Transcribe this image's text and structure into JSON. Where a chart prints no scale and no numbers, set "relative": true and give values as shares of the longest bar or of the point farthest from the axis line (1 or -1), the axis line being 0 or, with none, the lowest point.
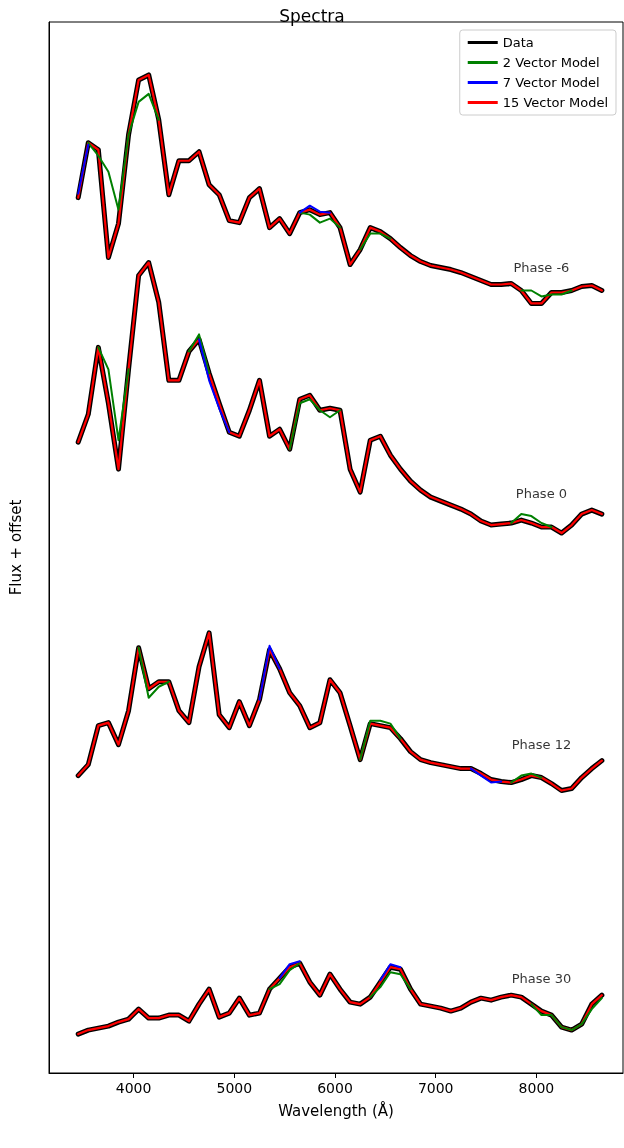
{
  "chart_data": {
    "type": "line",
    "title": "Spectra",
    "xlabel": "Wavelength (Å)",
    "ylabel": "Flux + offset",
    "relative": true,
    "legend": "top right",
    "xlim": [
      3160,
      8860
    ],
    "xticks": [
      4000,
      5000,
      6000,
      7000,
      8000
    ],
    "x": [
      3450,
      3550,
      3650,
      3750,
      3850,
      3950,
      4050,
      4150,
      4250,
      4350,
      4450,
      4550,
      4650,
      4750,
      4850,
      4950,
      5050,
      5150,
      5250,
      5350,
      5450,
      5550,
      5650,
      5750,
      5850,
      5950,
      6050,
      6150,
      6250,
      6350,
      6450,
      6550,
      6650,
      6750,
      6850,
      6950,
      7050,
      7150,
      7250,
      7350,
      7450,
      7550,
      7650,
      7750,
      7850,
      7950,
      8050,
      8150,
      8250,
      8350,
      8450,
      8550,
      8650
    ],
    "series": [
      {
        "name": "Data",
        "color": "#000000",
        "values": [
          0.877,
          0.932,
          0.925,
          0.817,
          0.851,
          0.94,
          0.995,
          1,
          0.955,
          0.88,
          0.914,
          0.914,
          0.923,
          0.89,
          0.88,
          0.854,
          0.852,
          0.877,
          0.886,
          0.847,
          0.856,
          0.841,
          0.862,
          0.865,
          0.86,
          0.862,
          0.847,
          0.81,
          0.825,
          0.847,
          0.843,
          0.836,
          0.827,
          0.819,
          0.813,
          0.809,
          0.807,
          0.805,
          0.802,
          0.798,
          0.794,
          0.79,
          0.79,
          0.791,
          0.784,
          0.771,
          0.771,
          0.782,
          0.782,
          0.784,
          0.788,
          0.789,
          0.784
        ]
      },
      {
        "name": "2 Vector Model",
        "color": "#008000",
        "values": [
          null,
          0.932,
          0.919,
          0.903,
          0.865,
          0.94,
          0.973,
          0.981,
          0.955,
          null,
          null,
          null,
          null,
          null,
          null,
          null,
          null,
          null,
          null,
          null,
          null,
          null,
          0.862,
          0.86,
          0.852,
          0.856,
          0.847,
          null,
          0.825,
          0.841,
          0.841,
          0.836,
          null,
          null,
          null,
          null,
          null,
          null,
          null,
          null,
          null,
          null,
          null,
          null,
          0.784,
          0.784,
          0.778,
          0.78,
          0.78,
          0.784,
          null,
          null,
          null
        ]
      },
      {
        "name": "7 Vector Model",
        "color": "#0000ff",
        "values": [
          0.881,
          0.93,
          null,
          null,
          null,
          null,
          null,
          null,
          null,
          null,
          null,
          null,
          null,
          null,
          null,
          null,
          null,
          null,
          null,
          null,
          null,
          null,
          0.862,
          0.869,
          0.863,
          0.862,
          null,
          null,
          null,
          null,
          null,
          null,
          null,
          null,
          null,
          null,
          null,
          null,
          null,
          null,
          null,
          null,
          null,
          null,
          null,
          null,
          null,
          null,
          null,
          null,
          null,
          null,
          null
        ]
      },
      {
        "name": "15 Vector Model",
        "color": "#ff0000",
        "values": [
          0.877,
          0.932,
          0.925,
          0.817,
          0.851,
          0.94,
          0.995,
          1,
          0.955,
          0.88,
          0.914,
          0.914,
          0.923,
          0.89,
          0.88,
          0.854,
          0.852,
          0.877,
          0.886,
          0.847,
          0.856,
          0.841,
          0.862,
          0.865,
          0.86,
          0.862,
          0.847,
          0.81,
          0.825,
          0.847,
          0.843,
          0.836,
          0.827,
          0.819,
          0.813,
          0.809,
          0.807,
          0.805,
          0.802,
          0.798,
          0.794,
          0.79,
          0.79,
          0.791,
          0.784,
          0.771,
          0.771,
          0.782,
          0.782,
          0.784,
          0.788,
          0.789,
          0.784
        ]
      },
      {
        "color": "#000000",
        "values": [
          0.632,
          0.66,
          0.727,
          0.671,
          0.605,
          0.705,
          0.799,
          0.812,
          0.772,
          0.694,
          0.694,
          0.723,
          0.735,
          0.701,
          0.671,
          0.642,
          0.638,
          0.664,
          0.694,
          0.638,
          0.645,
          0.625,
          0.675,
          0.679,
          0.664,
          0.666,
          0.664,
          0.605,
          0.582,
          0.634,
          0.638,
          0.619,
          0.605,
          0.593,
          0.584,
          0.577,
          0.573,
          0.569,
          0.565,
          0.56,
          0.553,
          0.549,
          0.55,
          0.551,
          0.554,
          0.551,
          0.547,
          0.547,
          0.541,
          0.549,
          0.56,
          0.564,
          0.56
        ]
      },
      {
        "color": "#008000",
        "values": [
          null,
          null,
          0.727,
          0.705,
          0.634,
          0.705,
          null,
          null,
          null,
          null,
          null,
          0.723,
          0.74,
          0.701,
          null,
          null,
          null,
          null,
          null,
          null,
          null,
          0.625,
          0.671,
          0.675,
          0.664,
          0.657,
          0.664,
          null,
          null,
          null,
          null,
          null,
          null,
          null,
          null,
          null,
          null,
          null,
          null,
          null,
          null,
          null,
          null,
          0.551,
          0.56,
          0.558,
          0.551,
          0.547,
          null,
          null,
          null,
          null,
          null
        ]
      },
      {
        "color": "#0000ff",
        "values": [
          null,
          null,
          null,
          null,
          null,
          null,
          null,
          null,
          null,
          null,
          null,
          null,
          0.735,
          0.694,
          0.666,
          0.642,
          null,
          null,
          null,
          null,
          null,
          null,
          null,
          null,
          null,
          null,
          null,
          null,
          null,
          null,
          null,
          null,
          null,
          null,
          null,
          null,
          null,
          null,
          null,
          null,
          null,
          null,
          null,
          null,
          null,
          null,
          null,
          null,
          null,
          null,
          null,
          null,
          null
        ]
      },
      {
        "color": "#ff0000",
        "values": [
          0.632,
          0.66,
          0.727,
          0.671,
          0.605,
          0.705,
          0.799,
          0.812,
          0.772,
          0.694,
          0.694,
          0.723,
          0.735,
          0.701,
          0.671,
          0.642,
          0.638,
          0.664,
          0.694,
          0.638,
          0.645,
          0.625,
          0.675,
          0.679,
          0.664,
          0.666,
          0.664,
          0.605,
          0.582,
          0.634,
          0.638,
          0.619,
          0.605,
          0.593,
          0.584,
          0.577,
          0.573,
          0.569,
          0.565,
          0.56,
          0.553,
          0.549,
          0.55,
          0.551,
          0.554,
          0.551,
          0.547,
          0.547,
          0.541,
          0.549,
          0.56,
          0.564,
          0.56
        ]
      },
      {
        "color": "#000000",
        "values": [
          0.298,
          0.309,
          0.348,
          0.351,
          0.329,
          0.363,
          0.426,
          0.385,
          0.392,
          0.392,
          0.363,
          0.351,
          0.407,
          0.441,
          0.359,
          0.346,
          0.372,
          0.348,
          0.374,
          0.424,
          0.405,
          0.381,
          0.368,
          0.346,
          0.351,
          0.394,
          0.381,
          0.348,
          0.314,
          0.35,
          0.348,
          0.346,
          0.335,
          0.322,
          0.314,
          0.311,
          0.309,
          0.307,
          0.305,
          0.305,
          0.3,
          0.294,
          0.292,
          0.291,
          0.294,
          0.298,
          0.296,
          0.29,
          0.283,
          0.285,
          0.296,
          0.305,
          0.313
        ]
      },
      {
        "color": "#008000",
        "values": [
          null,
          null,
          null,
          null,
          null,
          null,
          0.426,
          0.376,
          0.387,
          0.392,
          null,
          null,
          null,
          null,
          null,
          null,
          null,
          null,
          null,
          null,
          null,
          null,
          null,
          null,
          null,
          null,
          null,
          null,
          0.314,
          0.353,
          0.353,
          0.35,
          0.335,
          null,
          null,
          null,
          null,
          null,
          null,
          null,
          null,
          null,
          null,
          0.291,
          0.298,
          0.3,
          0.296,
          null,
          null,
          null,
          null,
          null,
          null
        ]
      },
      {
        "color": "#0000ff",
        "values": [
          null,
          null,
          null,
          null,
          null,
          null,
          null,
          null,
          null,
          null,
          null,
          null,
          null,
          null,
          null,
          null,
          null,
          null,
          0.374,
          0.428,
          0.405,
          null,
          null,
          null,
          null,
          null,
          null,
          null,
          null,
          null,
          null,
          null,
          null,
          null,
          null,
          null,
          null,
          null,
          null,
          0.305,
          0.298,
          0.291,
          0.292,
          null,
          null,
          null,
          null,
          null,
          null,
          null,
          null,
          null,
          null
        ]
      },
      {
        "color": "#ff0000",
        "values": [
          0.298,
          0.309,
          0.348,
          0.351,
          0.329,
          0.363,
          0.426,
          0.385,
          0.392,
          0.392,
          0.363,
          0.351,
          0.407,
          0.441,
          0.359,
          0.346,
          0.372,
          0.348,
          0.374,
          0.424,
          0.405,
          0.381,
          0.368,
          0.346,
          0.351,
          0.394,
          0.381,
          0.348,
          0.314,
          0.35,
          0.348,
          0.346,
          0.335,
          0.322,
          0.314,
          0.311,
          0.309,
          0.307,
          0.305,
          0.305,
          0.3,
          0.294,
          0.292,
          0.291,
          0.294,
          0.298,
          0.296,
          0.29,
          0.283,
          0.285,
          0.296,
          0.305,
          0.313
        ]
      },
      {
        "color": "#000000",
        "values": [
          0.039,
          0.043,
          0.045,
          0.047,
          0.051,
          0.054,
          0.064,
          0.055,
          0.055,
          0.058,
          0.058,
          0.052,
          0.069,
          0.084,
          0.056,
          0.06,
          0.075,
          0.058,
          0.06,
          0.084,
          0.095,
          0.106,
          0.11,
          0.091,
          0.078,
          0.099,
          0.084,
          0.071,
          0.069,
          0.076,
          0.091,
          0.106,
          0.104,
          0.084,
          0.069,
          0.067,
          0.065,
          0.062,
          0.065,
          0.071,
          0.075,
          0.073,
          0.076,
          0.078,
          0.076,
          0.069,
          0.062,
          0.058,
          0.046,
          0.043,
          0.049,
          0.069,
          0.078
        ]
      },
      {
        "color": "#008000",
        "values": [
          null,
          null,
          null,
          null,
          null,
          null,
          null,
          null,
          null,
          null,
          null,
          null,
          null,
          null,
          null,
          null,
          null,
          null,
          null,
          0.084,
          0.089,
          0.103,
          0.11,
          null,
          null,
          null,
          null,
          null,
          null,
          0.076,
          0.086,
          0.101,
          0.099,
          0.084,
          null,
          null,
          null,
          null,
          null,
          null,
          null,
          null,
          null,
          null,
          null,
          0.069,
          0.058,
          0.058,
          0.046,
          0.043,
          0.049,
          0.064,
          0.075
        ]
      },
      {
        "color": "#0000ff",
        "values": [
          null,
          null,
          null,
          null,
          null,
          null,
          null,
          null,
          null,
          null,
          null,
          null,
          null,
          null,
          null,
          null,
          null,
          null,
          null,
          null,
          0.095,
          0.109,
          0.112,
          null,
          null,
          null,
          null,
          null,
          null,
          null,
          0.093,
          0.109,
          0.106,
          null,
          null,
          null,
          null,
          null,
          null,
          null,
          null,
          null,
          null,
          null,
          null,
          null,
          null,
          null,
          null,
          null,
          null,
          null,
          null
        ]
      },
      {
        "color": "#ff0000",
        "values": [
          0.039,
          0.043,
          0.045,
          0.047,
          0.051,
          0.054,
          0.064,
          0.055,
          0.055,
          0.058,
          0.058,
          0.052,
          0.069,
          0.084,
          0.056,
          0.06,
          0.075,
          0.058,
          0.06,
          0.084,
          0.095,
          0.106,
          0.11,
          0.091,
          0.078,
          0.099,
          0.084,
          0.071,
          0.069,
          0.076,
          0.091,
          0.106,
          0.104,
          0.084,
          0.069,
          0.067,
          0.065,
          0.062,
          0.065,
          0.071,
          0.075,
          0.073,
          0.076,
          0.078,
          0.076,
          0.069,
          0.062,
          0.058,
          0.046,
          0.043,
          0.049,
          0.069,
          0.078
        ]
      }
    ],
    "annotations": [
      "Phase -6",
      "Phase 0",
      "Phase 12",
      "Phase 30"
    ]
  }
}
